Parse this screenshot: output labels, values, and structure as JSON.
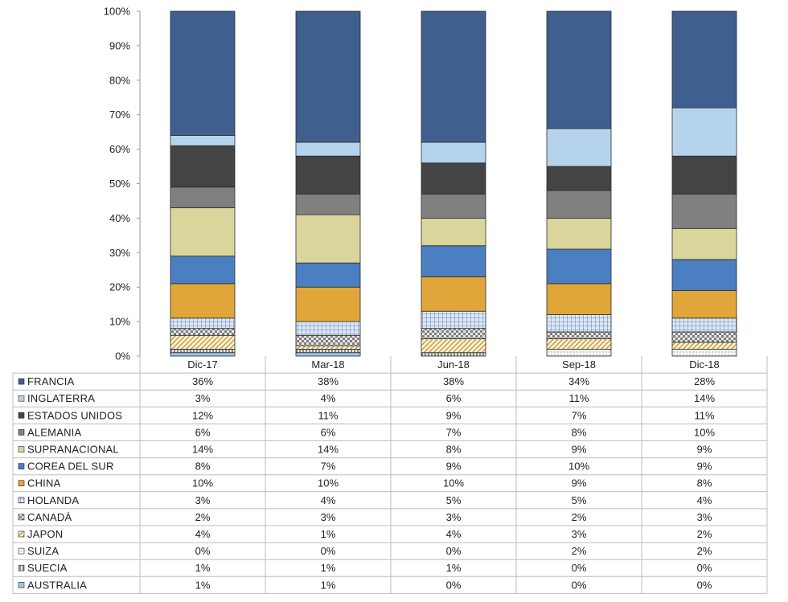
{
  "chart_data": {
    "type": "bar",
    "stacked": true,
    "categories": [
      "Dic-17",
      "Mar-18",
      "Jun-18",
      "Sep-18",
      "Dic-18"
    ],
    "ylim": [
      0,
      100
    ],
    "yticks": [
      "0%",
      "10%",
      "20%",
      "30%",
      "40%",
      "50%",
      "60%",
      "70%",
      "80%",
      "90%",
      "100%"
    ],
    "series": [
      {
        "name": "FRANCIA",
        "color": "#3f5f8f",
        "pattern": "solid",
        "values": [
          36,
          38,
          38,
          34,
          28
        ],
        "labels": [
          "36%",
          "38%",
          "38%",
          "34%",
          "28%"
        ]
      },
      {
        "name": "INGLATERRA",
        "color": "#b6d3ee",
        "pattern": "solid",
        "values": [
          3,
          4,
          6,
          11,
          14
        ],
        "labels": [
          "3%",
          "4%",
          "6%",
          "11%",
          "14%"
        ]
      },
      {
        "name": "ESTADOS UNIDOS",
        "color": "#444444",
        "pattern": "solid",
        "values": [
          12,
          11,
          9,
          7,
          11
        ],
        "labels": [
          "12%",
          "11%",
          "9%",
          "7%",
          "11%"
        ]
      },
      {
        "name": "ALEMANIA",
        "color": "#808080",
        "pattern": "solid",
        "values": [
          6,
          6,
          7,
          8,
          10
        ],
        "labels": [
          "6%",
          "6%",
          "7%",
          "8%",
          "10%"
        ]
      },
      {
        "name": "SUPRANACIONAL",
        "color": "#d9d59c",
        "pattern": "solid",
        "values": [
          14,
          14,
          8,
          9,
          9
        ],
        "labels": [
          "14%",
          "14%",
          "8%",
          "9%",
          "9%"
        ]
      },
      {
        "name": "COREA DEL SUR",
        "color": "#4a7fc1",
        "pattern": "solid",
        "values": [
          8,
          7,
          9,
          10,
          9
        ],
        "labels": [
          "8%",
          "7%",
          "9%",
          "10%",
          "9%"
        ]
      },
      {
        "name": "CHINA",
        "color": "#e0a63a",
        "pattern": "solid",
        "values": [
          10,
          10,
          10,
          9,
          8
        ],
        "labels": [
          "10%",
          "10%",
          "10%",
          "9%",
          "8%"
        ]
      },
      {
        "name": "HOLANDA",
        "color": "#5b7fb5",
        "pattern": "grid",
        "values": [
          3,
          4,
          5,
          5,
          4
        ],
        "labels": [
          "3%",
          "4%",
          "5%",
          "5%",
          "4%"
        ]
      },
      {
        "name": "CANADÁ",
        "color": "#7f7f7f",
        "pattern": "checker",
        "values": [
          2,
          3,
          3,
          2,
          3
        ],
        "labels": [
          "2%",
          "3%",
          "3%",
          "2%",
          "3%"
        ]
      },
      {
        "name": "JAPON",
        "color": "#d9b86a",
        "pattern": "diagonal",
        "values": [
          4,
          1,
          4,
          3,
          2
        ],
        "labels": [
          "4%",
          "1%",
          "4%",
          "3%",
          "2%"
        ]
      },
      {
        "name": "SUIZA",
        "color": "#c8c8c8",
        "pattern": "dots",
        "values": [
          0,
          0,
          0,
          2,
          2
        ],
        "labels": [
          "0%",
          "0%",
          "0%",
          "2%",
          "2%"
        ]
      },
      {
        "name": "SUECIA",
        "color": "#6a6a6a",
        "pattern": "vertical",
        "values": [
          1,
          1,
          1,
          0,
          0
        ],
        "labels": [
          "1%",
          "1%",
          "1%",
          "0%",
          "0%"
        ]
      },
      {
        "name": "AUSTRALIA",
        "color": "#9ec3e6",
        "pattern": "solid",
        "values": [
          1,
          1,
          0,
          0,
          0
        ],
        "labels": [
          "1%",
          "1%",
          "0%",
          "0%",
          "0%"
        ]
      }
    ]
  }
}
